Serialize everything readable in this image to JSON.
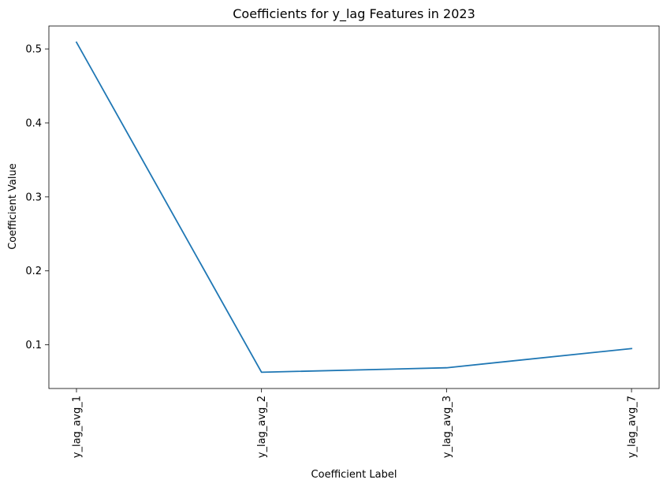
{
  "chart_data": {
    "type": "line",
    "title": "Coefficients for y_lag Features in 2023",
    "xlabel": "Coefficient Label",
    "ylabel": "Coefficient Value",
    "categories": [
      "y_lag_avg_1",
      "y_lag_avg_2",
      "y_lag_avg_3",
      "y_lag_avg_7"
    ],
    "series": [
      {
        "values": [
          0.509,
          0.063,
          0.069,
          0.095
        ],
        "color": "#1f77b4"
      }
    ],
    "yticks": [
      0.1,
      0.2,
      0.3,
      0.4,
      0.5
    ],
    "ytick_labels": [
      "0.1",
      "0.2",
      "0.3",
      "0.4",
      "0.5"
    ],
    "ylim": [
      0.041,
      0.531
    ],
    "grid": false,
    "legend": "none"
  }
}
